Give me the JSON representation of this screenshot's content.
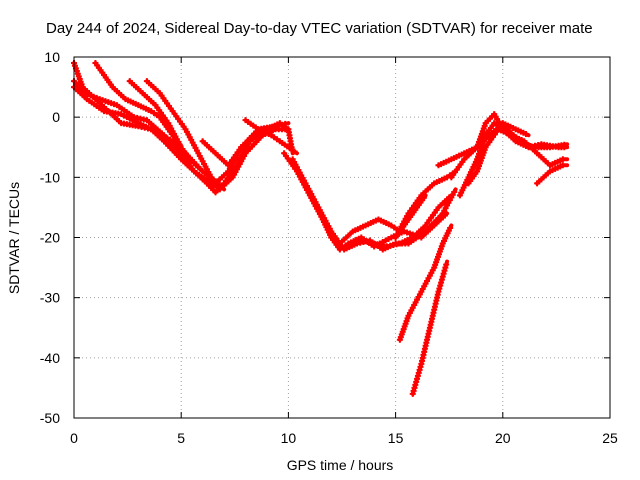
{
  "chart_data": {
    "type": "line",
    "title": "Day 244 of 2024, Sidereal Day-to-day VTEC variation (SDTVAR) for receiver mate",
    "xlabel": "GPS time / hours",
    "ylabel": "SDTVAR / TECUs",
    "xlim": [
      0,
      25
    ],
    "ylim": [
      -50,
      10
    ],
    "x_ticks": [
      0,
      5,
      10,
      15,
      20,
      25
    ],
    "y_ticks": [
      10,
      0,
      -10,
      -20,
      -30,
      -40,
      -50
    ],
    "grid": true,
    "legend": "none",
    "series_color": "#ff0000",
    "marker": "plus",
    "series": [
      {
        "points": [
          [
            0,
            9
          ],
          [
            0.4,
            5
          ],
          [
            1,
            3
          ],
          [
            1.6,
            1
          ],
          [
            2.2,
            -1
          ],
          [
            3,
            -1.5
          ],
          [
            3.6,
            -2
          ],
          [
            4.2,
            -4
          ],
          [
            5,
            -7
          ],
          [
            5.6,
            -9
          ],
          [
            6.2,
            -11
          ],
          [
            6.6,
            -12.5
          ],
          [
            7,
            -11
          ],
          [
            7.6,
            -8
          ],
          [
            8.2,
            -4
          ],
          [
            9,
            -2
          ],
          [
            9.6,
            -1
          ],
          [
            10,
            -2
          ],
          [
            10.2,
            -6
          ]
        ]
      },
      {
        "points": [
          [
            0,
            6
          ],
          [
            0.5,
            4
          ],
          [
            1.2,
            3
          ],
          [
            2,
            2
          ],
          [
            2.8,
            0
          ],
          [
            3.4,
            -0.5
          ],
          [
            4.2,
            -3
          ],
          [
            5,
            -6
          ],
          [
            5.6,
            -9
          ],
          [
            6.4,
            -11
          ],
          [
            6.8,
            -12
          ],
          [
            7.4,
            -10
          ],
          [
            8,
            -6
          ],
          [
            8.8,
            -3
          ],
          [
            9.4,
            -2
          ],
          [
            10,
            -2
          ]
        ]
      },
      {
        "points": [
          [
            0,
            5
          ],
          [
            0.6,
            3
          ],
          [
            1.4,
            1
          ],
          [
            2.2,
            0.5
          ],
          [
            3,
            -1
          ],
          [
            3.6,
            -2
          ],
          [
            4.6,
            -4
          ],
          [
            5.2,
            -6
          ],
          [
            6,
            -9
          ],
          [
            6.6,
            -11
          ],
          [
            7.2,
            -9
          ],
          [
            7.8,
            -5
          ],
          [
            8.6,
            -2
          ],
          [
            9.4,
            -1.5
          ],
          [
            10,
            -1
          ]
        ]
      },
      {
        "points": [
          [
            1,
            9
          ],
          [
            1.4,
            7
          ],
          [
            1.8,
            5
          ],
          [
            2.4,
            3
          ],
          [
            3,
            2
          ],
          [
            3.6,
            1
          ],
          [
            4,
            0
          ],
          [
            4.4,
            -2
          ],
          [
            4.8,
            -4
          ],
          [
            5.4,
            -7
          ],
          [
            6,
            -9
          ]
        ]
      },
      {
        "points": [
          [
            2.6,
            6
          ],
          [
            3.2,
            4
          ],
          [
            3.8,
            2
          ],
          [
            4.4,
            -1
          ],
          [
            5,
            -5
          ]
        ]
      },
      {
        "points": [
          [
            3.4,
            6
          ],
          [
            4,
            4
          ],
          [
            4.6,
            1
          ],
          [
            5.2,
            -2
          ],
          [
            5.8,
            -6
          ],
          [
            6.4,
            -10
          ],
          [
            7,
            -12
          ]
        ]
      },
      {
        "points": [
          [
            6,
            -4
          ],
          [
            6.6,
            -6
          ],
          [
            7.2,
            -8
          ],
          [
            7.8,
            -5
          ],
          [
            8.4,
            -3
          ],
          [
            8.8,
            -2
          ],
          [
            9.2,
            -2.5
          ]
        ]
      },
      {
        "points": [
          [
            8,
            -0.5
          ],
          [
            8.6,
            -2
          ],
          [
            9.2,
            -3
          ],
          [
            9.6,
            -4
          ],
          [
            10.4,
            -6
          ]
        ]
      },
      {
        "points": [
          [
            9.8,
            -6
          ],
          [
            10.4,
            -9
          ],
          [
            11,
            -13
          ],
          [
            11.6,
            -17
          ],
          [
            12,
            -20
          ],
          [
            12.4,
            -22
          ],
          [
            12.8,
            -21
          ],
          [
            13.4,
            -20.5
          ],
          [
            14,
            -21
          ],
          [
            14.6,
            -21.5
          ],
          [
            15.2,
            -21
          ],
          [
            15.8,
            -20
          ],
          [
            16.4,
            -18
          ],
          [
            17,
            -15
          ],
          [
            17.6,
            -13
          ]
        ]
      },
      {
        "points": [
          [
            10.2,
            -7
          ],
          [
            10.8,
            -11
          ],
          [
            11.4,
            -15
          ],
          [
            12,
            -19
          ],
          [
            12.4,
            -21
          ],
          [
            13,
            -19
          ],
          [
            13.6,
            -18
          ],
          [
            14.2,
            -17
          ],
          [
            14.8,
            -18
          ],
          [
            15.2,
            -19
          ],
          [
            15.6,
            -17
          ],
          [
            16,
            -15
          ],
          [
            16.4,
            -13
          ]
        ]
      },
      {
        "points": [
          [
            12,
            -20
          ],
          [
            12.6,
            -22
          ],
          [
            13.2,
            -21
          ],
          [
            13.8,
            -20.5
          ],
          [
            14.4,
            -22
          ],
          [
            15,
            -21
          ],
          [
            15.6,
            -21
          ],
          [
            16.4,
            -19
          ],
          [
            17.2,
            -16
          ],
          [
            17.8,
            -12
          ]
        ]
      },
      {
        "points": [
          [
            12.8,
            -21
          ],
          [
            13.4,
            -20
          ],
          [
            14,
            -21.5
          ],
          [
            14.8,
            -20
          ],
          [
            15.4,
            -19
          ],
          [
            16.2,
            -20
          ],
          [
            16.8,
            -18
          ],
          [
            17.4,
            -16
          ]
        ]
      },
      {
        "points": [
          [
            15,
            -20
          ],
          [
            15.6,
            -16
          ],
          [
            16.2,
            -13
          ],
          [
            16.8,
            -11
          ],
          [
            17.4,
            -10
          ],
          [
            17.8,
            -9
          ]
        ]
      },
      {
        "points": [
          [
            15.2,
            -37
          ],
          [
            15.6,
            -33
          ],
          [
            16.2,
            -29
          ],
          [
            16.8,
            -25
          ],
          [
            17.2,
            -21
          ],
          [
            17.6,
            -18
          ]
        ]
      },
      {
        "points": [
          [
            15.8,
            -46
          ],
          [
            16.2,
            -41
          ],
          [
            16.6,
            -35
          ],
          [
            17,
            -29
          ],
          [
            17.4,
            -24
          ]
        ]
      },
      {
        "points": [
          [
            17.6,
            -10
          ],
          [
            18.2,
            -7
          ],
          [
            18.8,
            -5
          ],
          [
            19.2,
            -1
          ],
          [
            19.6,
            0.5
          ],
          [
            20,
            -2
          ],
          [
            20.6,
            -4
          ],
          [
            21.2,
            -5
          ],
          [
            21.8,
            -4.5
          ],
          [
            22.6,
            -5
          ],
          [
            23,
            -5
          ]
        ]
      },
      {
        "points": [
          [
            18,
            -13
          ],
          [
            18.4,
            -10
          ],
          [
            18.8,
            -7
          ],
          [
            19.2,
            -3
          ],
          [
            19.6,
            -1
          ],
          [
            20.2,
            -2
          ],
          [
            20.8,
            -4
          ],
          [
            21.4,
            -5
          ],
          [
            22.2,
            -5
          ],
          [
            23,
            -4.5
          ]
        ]
      },
      {
        "points": [
          [
            18.4,
            -11
          ],
          [
            18.8,
            -9
          ],
          [
            19.2,
            -5
          ],
          [
            19.8,
            -2
          ],
          [
            20.4,
            -3
          ],
          [
            21,
            -4
          ],
          [
            21.6,
            -6
          ],
          [
            22.2,
            -8
          ],
          [
            22.8,
            -7
          ],
          [
            23,
            -7
          ]
        ]
      },
      {
        "points": [
          [
            17,
            -8
          ],
          [
            17.6,
            -7
          ],
          [
            18.2,
            -6
          ],
          [
            18.8,
            -5
          ],
          [
            19.4,
            -3
          ],
          [
            20,
            -1
          ],
          [
            20.6,
            -2
          ],
          [
            21.2,
            -3
          ]
        ]
      },
      {
        "points": [
          [
            21.6,
            -11
          ],
          [
            22.2,
            -9
          ],
          [
            22.8,
            -8
          ],
          [
            23,
            -8
          ]
        ]
      }
    ]
  }
}
